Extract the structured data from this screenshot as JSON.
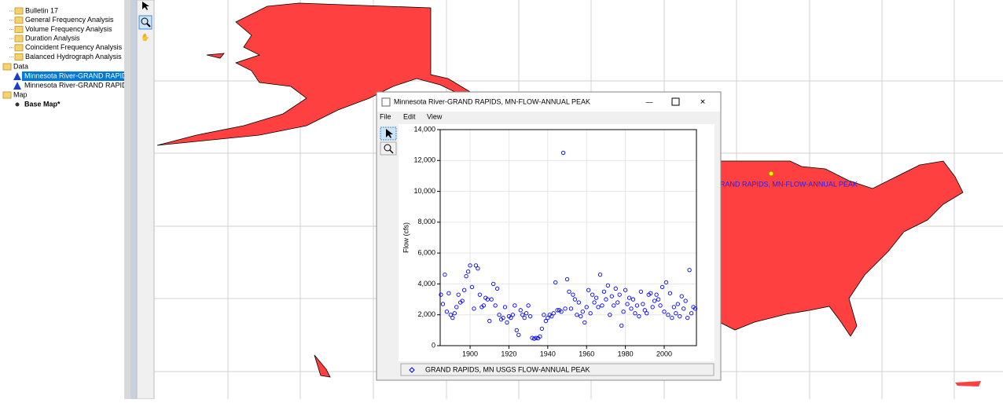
{
  "tree": {
    "items": [
      "Bulletin 17",
      "General Frequency Analysis",
      "Volume Frequency Analysis",
      "Duration Analysis",
      "Coincident Frequency Analysis",
      "Balanced Hydrograph Analysis"
    ],
    "data_folder": "Data",
    "data_items": [
      "Minnesota River-GRAND RAPID",
      "Minnesota River-GRAND RAPID"
    ],
    "map_folder": "Map",
    "map_item": "Base Map*"
  },
  "map": {
    "marker_label": "GRAND RAPIDS, MN-FLOW-ANNUAL PEAK"
  },
  "window": {
    "title": "Minnesota River-GRAND RAPIDS, MN-FLOW-ANNUAL PEAK",
    "menu": [
      "File",
      "Edit",
      "View"
    ]
  },
  "chart_data": {
    "type": "scatter",
    "y_label": "Flow (cfs)",
    "xlim": [
      1884.6,
      2016.6
    ],
    "ylim": [
      0,
      14000
    ],
    "xticks": [
      1900,
      1920,
      1940,
      1960,
      1980,
      2000
    ],
    "yticks": [
      0,
      {
        "value": 2000,
        "label": "2,000"
      },
      {
        "value": 4000,
        "label": "4,000"
      },
      {
        "value": 6000,
        "label": "6,000"
      },
      {
        "value": 8000,
        "label": "8,000"
      },
      {
        "value": 10000,
        "label": "10,000"
      },
      {
        "value": 12000,
        "label": "12,000"
      },
      {
        "value": 14000,
        "label": "14,000"
      }
    ],
    "series": [
      {
        "name": "GRAND RAPIDS, MN USGS FLOW-ANNUAL PEAK",
        "color": "#0000ff",
        "x": [
          1885,
          1886,
          1887,
          1888,
          1889,
          1890,
          1891,
          1892,
          1893,
          1894,
          1895,
          1896,
          1897,
          1898,
          1899,
          1900,
          1901,
          1902,
          1903,
          1904,
          1905,
          1906,
          1907,
          1908,
          1909,
          1910,
          1911,
          1912,
          1913,
          1914,
          1915,
          1916,
          1917,
          1918,
          1919,
          1920,
          1921,
          1922,
          1923,
          1924,
          1925,
          1926,
          1927,
          1928,
          1929,
          1930,
          1931,
          1932,
          1933,
          1934,
          1935,
          1936,
          1937,
          1938,
          1939,
          1940,
          1941,
          1942,
          1943,
          1944,
          1945,
          1946,
          1947,
          1948,
          1949,
          1950,
          1951,
          1952,
          1953,
          1954,
          1955,
          1956,
          1957,
          1958,
          1959,
          1960,
          1961,
          1962,
          1963,
          1964,
          1965,
          1966,
          1967,
          1968,
          1969,
          1970,
          1971,
          1972,
          1973,
          1974,
          1975,
          1976,
          1977,
          1978,
          1979,
          1980,
          1981,
          1982,
          1983,
          1984,
          1985,
          1986,
          1987,
          1988,
          1989,
          1990,
          1991,
          1992,
          1993,
          1994,
          1995,
          1996,
          1997,
          1998,
          1999,
          2000,
          2001,
          2002,
          2003,
          2004,
          2005,
          2006,
          2007,
          2008,
          2009,
          2010,
          2011,
          2012,
          2013,
          2014,
          2015,
          2016
        ],
        "values": [
          3300,
          2700,
          4600,
          2200,
          3400,
          2000,
          1800,
          2100,
          2500,
          3300,
          2800,
          2900,
          3600,
          4500,
          4800,
          5200,
          3800,
          2400,
          5200,
          5000,
          3300,
          2500,
          2600,
          3100,
          3000,
          1600,
          3000,
          4000,
          2600,
          3700,
          2000,
          1700,
          1800,
          2500,
          1500,
          1900,
          1800,
          2000,
          2600,
          1000,
          700,
          2300,
          2000,
          1800,
          2100,
          2600,
          1900,
          500,
          450,
          500,
          480,
          600,
          1100,
          2000,
          1600,
          1800,
          2000,
          1900,
          2100,
          4100,
          2300,
          2300,
          2200,
          12500,
          2400,
          4300,
          3500,
          2400,
          3300,
          3000,
          2000,
          2800,
          1900,
          2200,
          1500,
          2500,
          3600,
          2100,
          3300,
          2800,
          3100,
          2500,
          4600,
          2600,
          3500,
          3000,
          3900,
          2000,
          3200,
          2600,
          3700,
          2800,
          3300,
          1300,
          2200,
          3600,
          2700,
          3100,
          2400,
          3000,
          2100,
          2600,
          1900,
          3500,
          2700,
          2300,
          2100,
          3300,
          3400,
          2500,
          2900,
          3300,
          3000,
          2600,
          3800,
          2200,
          4100,
          2000,
          3400,
          1800,
          2500,
          2100,
          2700,
          1900,
          3200,
          2400,
          2900,
          1800,
          4900,
          2100,
          2500,
          2400
        ]
      }
    ],
    "legend": "bottom"
  }
}
